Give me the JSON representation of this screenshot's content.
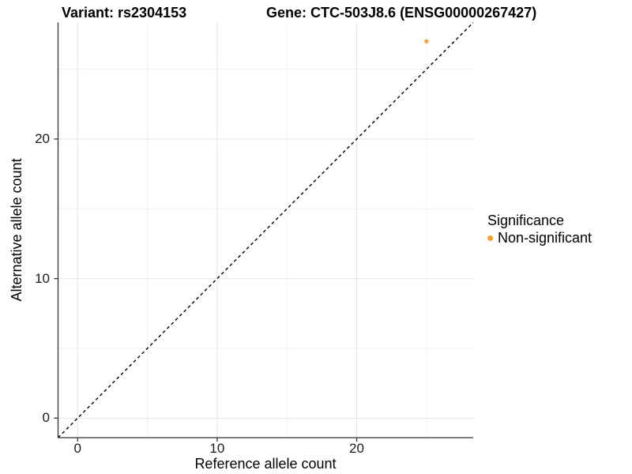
{
  "figure": {
    "title_left": "Variant: rs2304153",
    "title_right": "Gene: CTC-503J8.6 (ENSG00000267427)"
  },
  "chart_data": {
    "type": "scatter",
    "title": "Variant: rs2304153 | Gene: CTC-503J8.6 (ENSG00000267427)",
    "xlabel": "Reference allele count",
    "ylabel": "Alternative allele count",
    "xlim": [
      -1.4,
      28.35
    ],
    "ylim": [
      -1.4,
      28.35
    ],
    "x_major_ticks": [
      0,
      10,
      20
    ],
    "x_minor_ticks": [
      5,
      15,
      25
    ],
    "y_major_ticks": [
      0,
      10,
      20
    ],
    "y_minor_ticks": [
      5,
      15,
      25
    ],
    "grid": "major and minor gridlines on white background",
    "points": [
      {
        "x": 25,
        "y": 27,
        "series": "Non-significant"
      }
    ],
    "reference_line": {
      "kind": "identity",
      "slope": 1,
      "intercept": 0,
      "style": "dashed",
      "color": "#000000"
    },
    "legend": {
      "title": "Significance",
      "position": "right",
      "items": [
        {
          "label": "Non-significant",
          "color": "#F9A12C"
        }
      ]
    },
    "colors": {
      "point": "#F9A12C",
      "grid_major": "#e6e6e6",
      "grid_minor": "#f0f0f0",
      "axis": "#333333",
      "tick_text": "#1a1a1a"
    }
  }
}
